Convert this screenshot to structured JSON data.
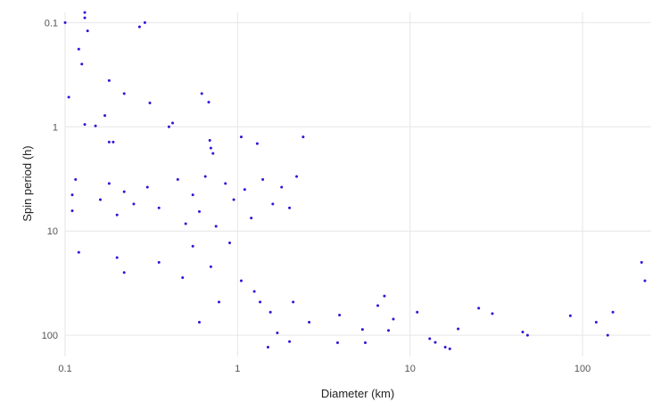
{
  "chart_data": {
    "type": "scatter",
    "title": "",
    "xlabel": "Diameter (km)",
    "ylabel": "Spin period (h)",
    "x_scale": "log",
    "y_scale": "log",
    "y_inverted": true,
    "xlim": [
      0.1,
      250
    ],
    "ylim": [
      0.08,
      160
    ],
    "grid": true,
    "legend": "none",
    "marker_color": "#2f14d8",
    "x_ticks": [
      {
        "value": 0.1,
        "label": "0.1"
      },
      {
        "value": 1,
        "label": "1"
      },
      {
        "value": 10,
        "label": "10"
      },
      {
        "value": 100,
        "label": "100"
      }
    ],
    "y_ticks": [
      {
        "value": 0.1,
        "label": "0.1"
      },
      {
        "value": 1,
        "label": "1"
      },
      {
        "value": 10,
        "label": "10"
      },
      {
        "value": 100,
        "label": "100"
      }
    ],
    "series": [
      {
        "points": [
          [
            0.1,
            0.1
          ],
          [
            0.13,
            0.08
          ],
          [
            0.13,
            0.09
          ],
          [
            0.135,
            0.12
          ],
          [
            0.12,
            0.18
          ],
          [
            0.125,
            0.25
          ],
          [
            0.27,
            0.11
          ],
          [
            0.29,
            0.1
          ],
          [
            0.105,
            0.52
          ],
          [
            0.18,
            0.36
          ],
          [
            0.22,
            0.48
          ],
          [
            0.31,
            0.59
          ],
          [
            0.62,
            0.48
          ],
          [
            0.68,
            0.58
          ],
          [
            0.42,
            0.92
          ],
          [
            0.4,
            1.0
          ],
          [
            0.13,
            0.95
          ],
          [
            0.15,
            0.98
          ],
          [
            0.17,
            0.78
          ],
          [
            0.19,
            1.4
          ],
          [
            0.18,
            1.4
          ],
          [
            0.69,
            1.35
          ],
          [
            1.05,
            1.25
          ],
          [
            1.3,
            1.45
          ],
          [
            2.4,
            1.25
          ],
          [
            0.7,
            1.6
          ],
          [
            0.72,
            1.8
          ],
          [
            0.11,
            4.5
          ],
          [
            0.115,
            3.2
          ],
          [
            0.11,
            6.4
          ],
          [
            0.12,
            16
          ],
          [
            0.16,
            5.0
          ],
          [
            0.18,
            3.5
          ],
          [
            0.2,
            7.0
          ],
          [
            0.22,
            4.2
          ],
          [
            0.25,
            5.5
          ],
          [
            0.3,
            3.8
          ],
          [
            0.35,
            6.0
          ],
          [
            0.45,
            3.2
          ],
          [
            0.5,
            8.5
          ],
          [
            0.55,
            4.5
          ],
          [
            0.6,
            6.5
          ],
          [
            0.65,
            3.0
          ],
          [
            0.75,
            9.0
          ],
          [
            0.85,
            3.5
          ],
          [
            0.95,
            5.0
          ],
          [
            1.1,
            4.0
          ],
          [
            1.2,
            7.5
          ],
          [
            1.4,
            3.2
          ],
          [
            1.6,
            5.5
          ],
          [
            1.8,
            3.8
          ],
          [
            2.0,
            6.0
          ],
          [
            2.2,
            3.0
          ],
          [
            0.2,
            18
          ],
          [
            0.22,
            25
          ],
          [
            0.35,
            20
          ],
          [
            0.48,
            28
          ],
          [
            0.55,
            14
          ],
          [
            0.7,
            22
          ],
          [
            0.78,
            48
          ],
          [
            0.9,
            13
          ],
          [
            1.05,
            30
          ],
          [
            1.25,
            38
          ],
          [
            1.55,
            60
          ],
          [
            1.7,
            95
          ],
          [
            2.0,
            115
          ],
          [
            1.35,
            48
          ],
          [
            0.6,
            75
          ],
          [
            1.5,
            130
          ],
          [
            2.1,
            48
          ],
          [
            2.6,
            75
          ],
          [
            3.8,
            118
          ],
          [
            3.9,
            64
          ],
          [
            5.3,
            88
          ],
          [
            5.5,
            118
          ],
          [
            6.5,
            52
          ],
          [
            7.1,
            42
          ],
          [
            7.5,
            90
          ],
          [
            8.0,
            70
          ],
          [
            11,
            60
          ],
          [
            13,
            108
          ],
          [
            14,
            117
          ],
          [
            16,
            130
          ],
          [
            17,
            135
          ],
          [
            19,
            87
          ],
          [
            25,
            55
          ],
          [
            30,
            62
          ],
          [
            45,
            93
          ],
          [
            48,
            100
          ],
          [
            85,
            65
          ],
          [
            120,
            75
          ],
          [
            140,
            100
          ],
          [
            150,
            60
          ],
          [
            230,
            30
          ],
          [
            220,
            20
          ]
        ]
      }
    ]
  }
}
